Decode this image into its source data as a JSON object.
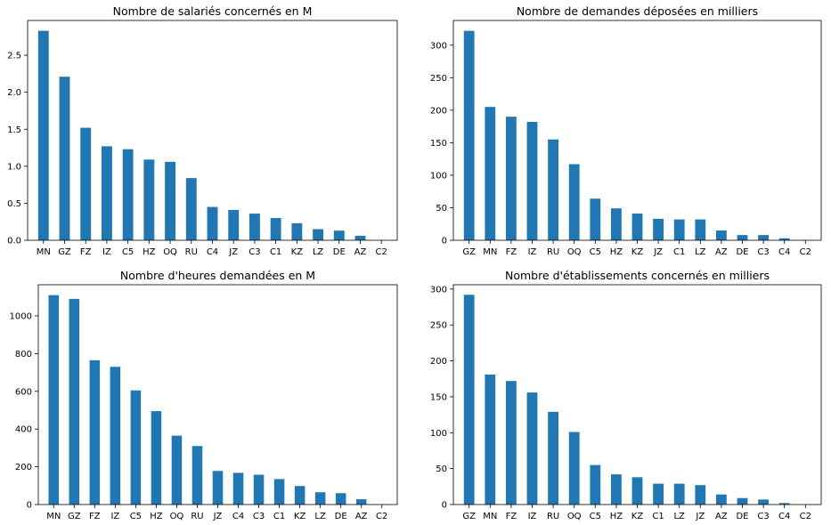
{
  "colors": {
    "bar": "#1f77b4",
    "axis": "#000000",
    "background": "#ffffff"
  },
  "chart_data": [
    {
      "type": "bar",
      "title": "Nombre de salariés concernés en M",
      "categories": [
        "MN",
        "GZ",
        "FZ",
        "IZ",
        "C5",
        "HZ",
        "OQ",
        "RU",
        "C4",
        "JZ",
        "C3",
        "C1",
        "KZ",
        "LZ",
        "DE",
        "AZ",
        "C2"
      ],
      "values": [
        2.83,
        2.21,
        1.52,
        1.27,
        1.23,
        1.09,
        1.06,
        0.84,
        0.45,
        0.41,
        0.36,
        0.3,
        0.23,
        0.15,
        0.13,
        0.06,
        0.0
      ],
      "yticks": [
        "0.0",
        "0.5",
        "1.0",
        "1.5",
        "2.0",
        "2.5"
      ],
      "ylim": [
        0,
        2.97
      ],
      "xlabel": "",
      "ylabel": ""
    },
    {
      "type": "bar",
      "title": "Nombre de demandes déposées en milliers",
      "categories": [
        "GZ",
        "MN",
        "FZ",
        "IZ",
        "RU",
        "OQ",
        "C5",
        "HZ",
        "KZ",
        "JZ",
        "C1",
        "LZ",
        "AZ",
        "DE",
        "C3",
        "C4",
        "C2"
      ],
      "values": [
        322,
        205,
        190,
        182,
        155,
        117,
        64,
        49,
        41,
        33,
        32,
        32,
        15,
        8,
        8,
        3,
        0
      ],
      "yticks": [
        "0",
        "50",
        "100",
        "150",
        "200",
        "250",
        "300"
      ],
      "ylim": [
        0,
        338
      ],
      "xlabel": "",
      "ylabel": ""
    },
    {
      "type": "bar",
      "title": "Nombre d'heures demandées en M",
      "categories": [
        "MN",
        "GZ",
        "FZ",
        "IZ",
        "C5",
        "HZ",
        "OQ",
        "RU",
        "JZ",
        "C4",
        "C3",
        "C1",
        "KZ",
        "LZ",
        "DE",
        "AZ",
        "C2"
      ],
      "values": [
        1110,
        1090,
        765,
        730,
        605,
        495,
        365,
        310,
        178,
        168,
        158,
        135,
        98,
        65,
        60,
        28,
        0
      ],
      "yticks": [
        "0",
        "200",
        "400",
        "600",
        "800",
        "1000"
      ],
      "ylim": [
        0,
        1165
      ],
      "xlabel": "",
      "ylabel": ""
    },
    {
      "type": "bar",
      "title": "Nombre d'établissements concernés en milliers",
      "categories": [
        "GZ",
        "MN",
        "FZ",
        "IZ",
        "RU",
        "OQ",
        "C5",
        "HZ",
        "KZ",
        "C1",
        "LZ",
        "JZ",
        "AZ",
        "DE",
        "C3",
        "C4",
        "C2"
      ],
      "values": [
        292,
        181,
        172,
        156,
        129,
        101,
        55,
        42,
        38,
        29,
        29,
        27,
        14,
        9,
        7,
        2,
        0
      ],
      "yticks": [
        "0",
        "50",
        "100",
        "150",
        "200",
        "250",
        "300"
      ],
      "ylim": [
        0,
        306
      ],
      "xlabel": "",
      "ylabel": ""
    }
  ]
}
